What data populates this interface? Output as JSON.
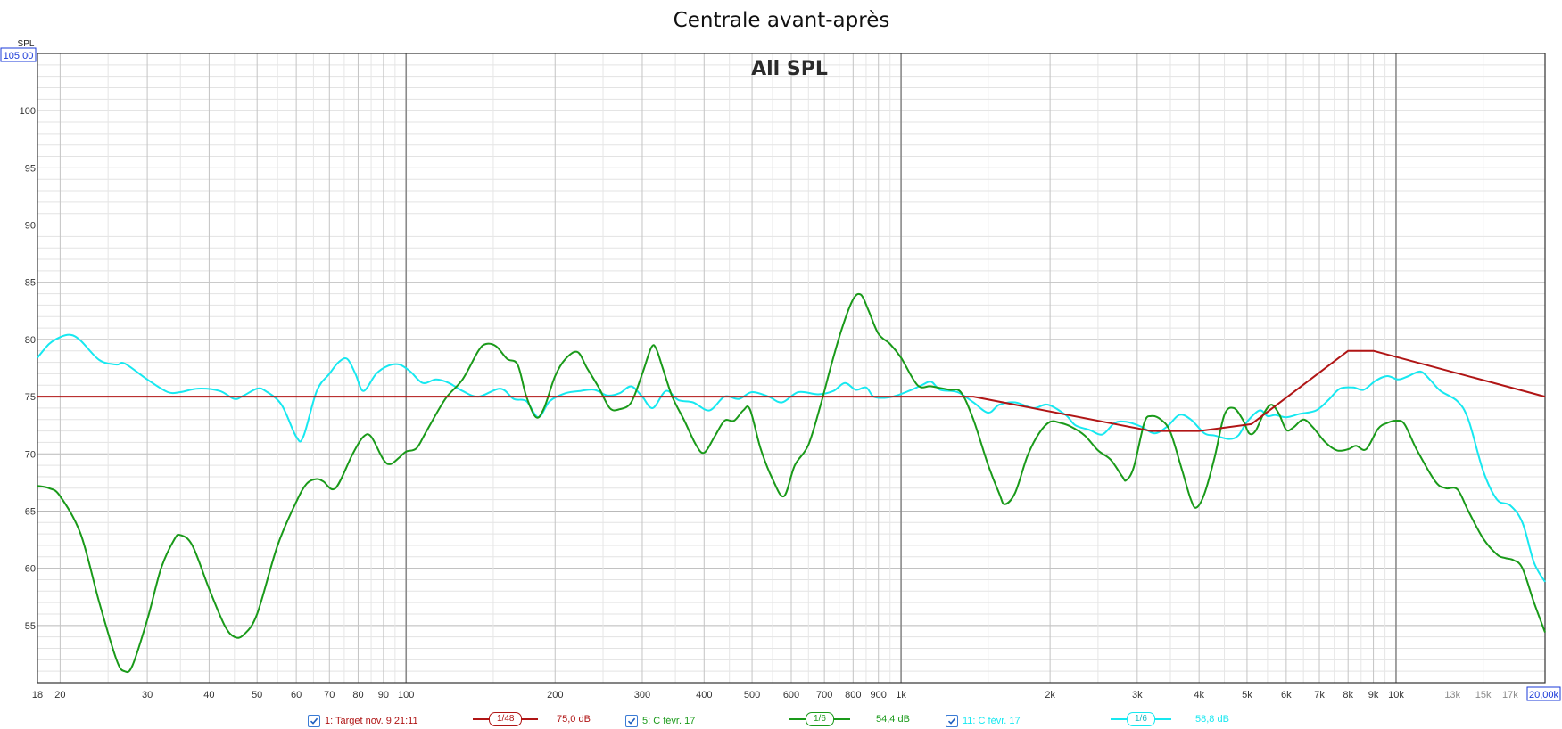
{
  "chart_data": {
    "type": "line",
    "title": "Centrale avant-après",
    "subtitle": "All SPL",
    "ylabel": "SPL",
    "y_top_label": "105,00",
    "x_right_label": "20,00k",
    "x_scale": "log",
    "xlim": [
      18,
      20000
    ],
    "ylim": [
      50,
      105
    ],
    "grid": true,
    "y_ticks": [
      55,
      60,
      65,
      70,
      75,
      80,
      85,
      90,
      95,
      100
    ],
    "x_ticks": [
      {
        "v": 18,
        "label": "18"
      },
      {
        "v": 20,
        "label": "20"
      },
      {
        "v": 30,
        "label": "30"
      },
      {
        "v": 40,
        "label": "40"
      },
      {
        "v": 50,
        "label": "50"
      },
      {
        "v": 60,
        "label": "60"
      },
      {
        "v": 70,
        "label": "70"
      },
      {
        "v": 80,
        "label": "80"
      },
      {
        "v": 90,
        "label": "90"
      },
      {
        "v": 100,
        "label": "100"
      },
      {
        "v": 200,
        "label": "200"
      },
      {
        "v": 300,
        "label": "300"
      },
      {
        "v": 400,
        "label": "400"
      },
      {
        "v": 500,
        "label": "500"
      },
      {
        "v": 600,
        "label": "600"
      },
      {
        "v": 700,
        "label": "700"
      },
      {
        "v": 800,
        "label": "800"
      },
      {
        "v": 900,
        "label": "900"
      },
      {
        "v": 1000,
        "label": "1k"
      },
      {
        "v": 2000,
        "label": "2k"
      },
      {
        "v": 3000,
        "label": "3k"
      },
      {
        "v": 4000,
        "label": "4k"
      },
      {
        "v": 5000,
        "label": "5k"
      },
      {
        "v": 6000,
        "label": "6k"
      },
      {
        "v": 7000,
        "label": "7k"
      },
      {
        "v": 8000,
        "label": "8k"
      },
      {
        "v": 9000,
        "label": "9k"
      },
      {
        "v": 10000,
        "label": "10k"
      },
      {
        "v": 13000,
        "label": "13k"
      },
      {
        "v": 15000,
        "label": "15k"
      },
      {
        "v": 17000,
        "label": "17k"
      }
    ],
    "series": [
      {
        "name": "1: Target nov. 9 21:11",
        "color": "#b01515",
        "smoothing": "1/48",
        "level": "75,0 dB",
        "points": [
          [
            18,
            75
          ],
          [
            1400,
            75
          ],
          [
            3200,
            72
          ],
          [
            4000,
            72
          ],
          [
            5100,
            72.6
          ],
          [
            8000,
            79
          ],
          [
            9000,
            79
          ],
          [
            20000,
            75
          ]
        ]
      },
      {
        "name": "5: C févr. 17",
        "color": "#1a9a1a",
        "smoothing": "1/6",
        "level": "54,4 dB",
        "points": [
          [
            18,
            67.2
          ],
          [
            19,
            67
          ],
          [
            20,
            66.3
          ],
          [
            22,
            63
          ],
          [
            24,
            57
          ],
          [
            26,
            52
          ],
          [
            27,
            51
          ],
          [
            28,
            51.5
          ],
          [
            30,
            55.5
          ],
          [
            32,
            60
          ],
          [
            34,
            62.5
          ],
          [
            35,
            62.9
          ],
          [
            37,
            62
          ],
          [
            40,
            58.2
          ],
          [
            43,
            55
          ],
          [
            45,
            54
          ],
          [
            47,
            54.2
          ],
          [
            50,
            56
          ],
          [
            55,
            62
          ],
          [
            60,
            65.8
          ],
          [
            63,
            67.4
          ],
          [
            66,
            67.8
          ],
          [
            68,
            67.6
          ],
          [
            72,
            67
          ],
          [
            78,
            70
          ],
          [
            82,
            71.5
          ],
          [
            85,
            71.5
          ],
          [
            90,
            69.5
          ],
          [
            93,
            69.1
          ],
          [
            97,
            69.7
          ],
          [
            100,
            70.2
          ],
          [
            105,
            70.5
          ],
          [
            110,
            72
          ],
          [
            120,
            74.8
          ],
          [
            130,
            76.5
          ],
          [
            140,
            79
          ],
          [
            145,
            79.6
          ],
          [
            152,
            79.4
          ],
          [
            160,
            78.3
          ],
          [
            168,
            77.8
          ],
          [
            175,
            75
          ],
          [
            183,
            73.2
          ],
          [
            190,
            74
          ],
          [
            200,
            76.8
          ],
          [
            210,
            78.3
          ],
          [
            222,
            78.9
          ],
          [
            232,
            77.5
          ],
          [
            245,
            75.8
          ],
          [
            258,
            74
          ],
          [
            270,
            73.9
          ],
          [
            285,
            74.5
          ],
          [
            300,
            77
          ],
          [
            313,
            79.3
          ],
          [
            320,
            79.2
          ],
          [
            330,
            77.5
          ],
          [
            345,
            75
          ],
          [
            365,
            72.9
          ],
          [
            385,
            70.8
          ],
          [
            400,
            70.1
          ],
          [
            420,
            71.5
          ],
          [
            440,
            72.9
          ],
          [
            460,
            72.9
          ],
          [
            480,
            73.8
          ],
          [
            495,
            73.9
          ],
          [
            520,
            70.5
          ],
          [
            550,
            67.8
          ],
          [
            580,
            66.3
          ],
          [
            610,
            69
          ],
          [
            650,
            70.8
          ],
          [
            690,
            74.5
          ],
          [
            720,
            77.5
          ],
          [
            760,
            81
          ],
          [
            800,
            83.5
          ],
          [
            830,
            83.9
          ],
          [
            860,
            82.5
          ],
          [
            900,
            80.5
          ],
          [
            950,
            79.6
          ],
          [
            1000,
            78.4
          ],
          [
            1080,
            76
          ],
          [
            1150,
            75.9
          ],
          [
            1250,
            75.6
          ],
          [
            1320,
            75.4
          ],
          [
            1400,
            73
          ],
          [
            1500,
            69
          ],
          [
            1580,
            66.5
          ],
          [
            1620,
            65.6
          ],
          [
            1700,
            66.6
          ],
          [
            1800,
            69.8
          ],
          [
            1900,
            71.8
          ],
          [
            2000,
            72.8
          ],
          [
            2100,
            72.7
          ],
          [
            2200,
            72.4
          ],
          [
            2350,
            71.6
          ],
          [
            2500,
            70.3
          ],
          [
            2650,
            69.5
          ],
          [
            2800,
            68
          ],
          [
            2850,
            67.7
          ],
          [
            2950,
            68.8
          ],
          [
            3100,
            72.7
          ],
          [
            3200,
            73.3
          ],
          [
            3350,
            73
          ],
          [
            3500,
            71.9
          ],
          [
            3700,
            68.5
          ],
          [
            3850,
            66
          ],
          [
            3950,
            65.3
          ],
          [
            4100,
            66.5
          ],
          [
            4300,
            69.7
          ],
          [
            4500,
            73.4
          ],
          [
            4700,
            74
          ],
          [
            4900,
            73
          ],
          [
            5050,
            71.8
          ],
          [
            5200,
            72
          ],
          [
            5400,
            73.5
          ],
          [
            5600,
            74.3
          ],
          [
            5800,
            73.5
          ],
          [
            6000,
            72.1
          ],
          [
            6200,
            72.3
          ],
          [
            6500,
            73
          ],
          [
            6800,
            72.3
          ],
          [
            7200,
            71
          ],
          [
            7600,
            70.3
          ],
          [
            8000,
            70.4
          ],
          [
            8300,
            70.7
          ],
          [
            8700,
            70.4
          ],
          [
            9200,
            72.2
          ],
          [
            9600,
            72.7
          ],
          [
            10000,
            72.9
          ],
          [
            10400,
            72.6
          ],
          [
            11000,
            70.4
          ],
          [
            12000,
            67.6
          ],
          [
            12600,
            67
          ],
          [
            13300,
            66.9
          ],
          [
            14000,
            65
          ],
          [
            15000,
            62.6
          ],
          [
            16000,
            61.2
          ],
          [
            16600,
            60.9
          ],
          [
            17300,
            60.7
          ],
          [
            18000,
            60
          ],
          [
            19000,
            57
          ],
          [
            20000,
            54.4
          ]
        ]
      },
      {
        "name": "11: C févr. 17",
        "color": "#17e8f0",
        "smoothing": "1/6",
        "level": "58,8 dB",
        "points": [
          [
            18,
            78.4
          ],
          [
            19,
            79.6
          ],
          [
            20,
            80.2
          ],
          [
            21,
            80.4
          ],
          [
            22,
            79.9
          ],
          [
            24,
            78.2
          ],
          [
            26,
            77.8
          ],
          [
            27,
            77.9
          ],
          [
            30,
            76.5
          ],
          [
            33,
            75.4
          ],
          [
            35,
            75.4
          ],
          [
            38,
            75.7
          ],
          [
            42,
            75.5
          ],
          [
            45,
            74.8
          ],
          [
            47,
            75.1
          ],
          [
            50,
            75.7
          ],
          [
            52,
            75.5
          ],
          [
            56,
            74.3
          ],
          [
            60,
            71.5
          ],
          [
            62,
            71.5
          ],
          [
            66,
            75.5
          ],
          [
            70,
            77
          ],
          [
            73,
            78
          ],
          [
            76,
            78.3
          ],
          [
            79,
            77
          ],
          [
            82,
            75.5
          ],
          [
            87,
            77
          ],
          [
            92,
            77.7
          ],
          [
            97,
            77.8
          ],
          [
            102,
            77.2
          ],
          [
            108,
            76.2
          ],
          [
            115,
            76.5
          ],
          [
            122,
            76.2
          ],
          [
            130,
            75.5
          ],
          [
            140,
            75
          ],
          [
            155,
            75.7
          ],
          [
            165,
            74.8
          ],
          [
            175,
            74.6
          ],
          [
            185,
            73.2
          ],
          [
            195,
            74.6
          ],
          [
            210,
            75.3
          ],
          [
            225,
            75.5
          ],
          [
            240,
            75.6
          ],
          [
            255,
            75.1
          ],
          [
            270,
            75.3
          ],
          [
            285,
            75.9
          ],
          [
            300,
            75
          ],
          [
            315,
            74
          ],
          [
            335,
            75.5
          ],
          [
            355,
            74.7
          ],
          [
            380,
            74.5
          ],
          [
            410,
            73.8
          ],
          [
            440,
            75
          ],
          [
            470,
            74.8
          ],
          [
            500,
            75.4
          ],
          [
            540,
            75
          ],
          [
            575,
            74.5
          ],
          [
            620,
            75.4
          ],
          [
            680,
            75.2
          ],
          [
            730,
            75.5
          ],
          [
            770,
            76.2
          ],
          [
            810,
            75.6
          ],
          [
            850,
            75.8
          ],
          [
            880,
            75
          ],
          [
            930,
            74.9
          ],
          [
            980,
            75.1
          ],
          [
            1050,
            75.6
          ],
          [
            1100,
            76
          ],
          [
            1150,
            76.3
          ],
          [
            1200,
            75.6
          ],
          [
            1300,
            75.4
          ],
          [
            1400,
            74.5
          ],
          [
            1500,
            73.6
          ],
          [
            1580,
            74.3
          ],
          [
            1700,
            74.5
          ],
          [
            1850,
            74
          ],
          [
            1980,
            74.3
          ],
          [
            2150,
            73.4
          ],
          [
            2250,
            72.5
          ],
          [
            2400,
            72.1
          ],
          [
            2550,
            71.7
          ],
          [
            2700,
            72.7
          ],
          [
            2850,
            72.8
          ],
          [
            3050,
            72.4
          ],
          [
            3250,
            71.8
          ],
          [
            3450,
            72.4
          ],
          [
            3650,
            73.4
          ],
          [
            3850,
            73
          ],
          [
            4100,
            71.8
          ],
          [
            4300,
            71.6
          ],
          [
            4600,
            71.3
          ],
          [
            4800,
            71.6
          ],
          [
            5000,
            72.8
          ],
          [
            5300,
            73.8
          ],
          [
            5500,
            73.3
          ],
          [
            5700,
            73.4
          ],
          [
            6000,
            73.2
          ],
          [
            6400,
            73.5
          ],
          [
            6900,
            73.8
          ],
          [
            7300,
            74.7
          ],
          [
            7700,
            75.7
          ],
          [
            8200,
            75.8
          ],
          [
            8600,
            75.6
          ],
          [
            9100,
            76.4
          ],
          [
            9600,
            76.8
          ],
          [
            10100,
            76.5
          ],
          [
            10600,
            76.8
          ],
          [
            11200,
            77.2
          ],
          [
            11700,
            76.5
          ],
          [
            12300,
            75.5
          ],
          [
            13300,
            74.6
          ],
          [
            14000,
            73
          ],
          [
            15000,
            68.5
          ],
          [
            16000,
            66
          ],
          [
            17000,
            65.5
          ],
          [
            18000,
            64
          ],
          [
            19000,
            60.5
          ],
          [
            20000,
            58.8
          ]
        ]
      }
    ]
  }
}
